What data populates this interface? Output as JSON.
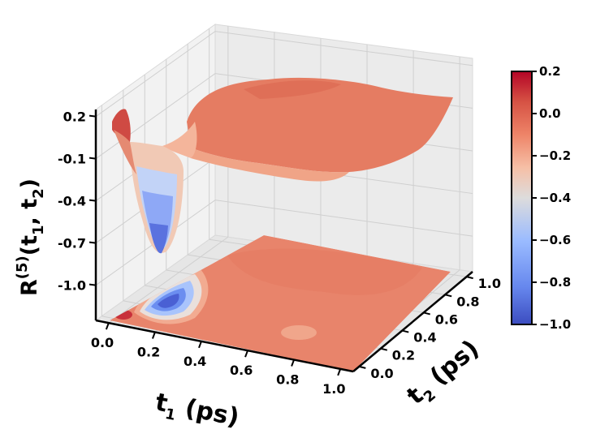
{
  "chart_data": {
    "type": "surface3d",
    "title": "",
    "colormap": "coolwarm",
    "x": {
      "label_base": "t",
      "label_sub": "1",
      "label_unit": " (ps)",
      "ticks": [
        "0.0",
        "0.2",
        "0.4",
        "0.6",
        "0.8",
        "1.0"
      ],
      "range": [
        0,
        1
      ]
    },
    "y": {
      "label_base": "t",
      "label_sub": "2",
      "label_unit": " (ps)",
      "ticks": [
        "0.0",
        "0.2",
        "0.4",
        "0.6",
        "0.8",
        "1.0"
      ],
      "range": [
        0,
        1
      ]
    },
    "z": {
      "label_base": "R",
      "label_sup": "(5)",
      "label_args_prefix": "(t",
      "label_args_sub1": "1",
      "label_args_mid": ", t",
      "label_args_sub2": "2",
      "label_args_suffix": ")",
      "ticks": [
        "0.2",
        "-0.1",
        "-0.4",
        "-0.7",
        "-1.0"
      ],
      "tick_values": [
        0.2,
        -0.1,
        -0.4,
        -0.7,
        -1.0
      ],
      "range": [
        -1.25,
        0.25
      ]
    },
    "colorbar": {
      "ticks": [
        "0.2",
        "0.0",
        "−0.2",
        "−0.4",
        "−0.6",
        "−0.8",
        "−1.0"
      ],
      "tick_values": [
        0.2,
        0.0,
        -0.2,
        -0.4,
        -0.6,
        -0.8,
        -1.0
      ],
      "vmin": -1.0,
      "vmax": 0.2
    },
    "surface_features": {
      "baseline_value": 0.0,
      "peak_value": 0.12,
      "peak_location": [
        0.02,
        0.02
      ],
      "trough_value": -0.95,
      "trough_location": [
        0.2,
        0.0
      ],
      "contour_projection": "floor"
    }
  }
}
